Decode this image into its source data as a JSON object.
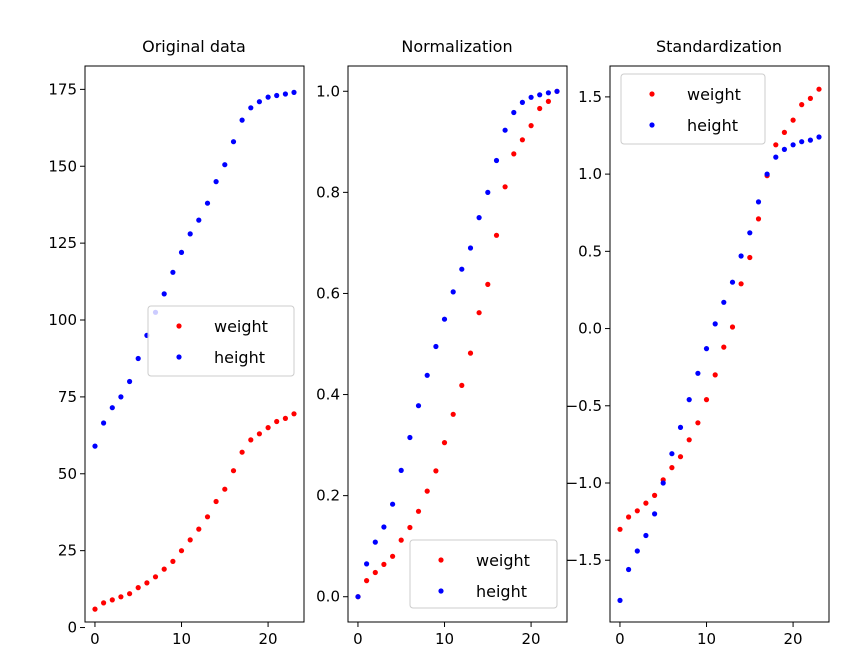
{
  "chart_data": [
    {
      "type": "scatter",
      "title": "Original data",
      "xlim": [
        -1.15,
        24.15
      ],
      "ylim": [
        1.8,
        182.6
      ],
      "xticks": [
        0,
        10,
        20
      ],
      "yticks": [
        0,
        25,
        50,
        75,
        100,
        125,
        150,
        175
      ],
      "ytick_labels": [
        "0",
        "25",
        "50",
        "75",
        "100",
        "125",
        "150",
        "175"
      ],
      "legend_location": "center-right",
      "series": [
        {
          "name": "weight",
          "color": "#ff0000",
          "x": [
            0,
            1,
            2,
            3,
            4,
            5,
            6,
            7,
            8,
            9,
            10,
            11,
            12,
            13,
            14,
            15,
            16,
            17,
            18,
            19,
            20,
            21,
            22,
            23
          ],
          "y": [
            6,
            8,
            9,
            10,
            11,
            13,
            14.5,
            16.5,
            19,
            21.5,
            25,
            28.5,
            32,
            36,
            41,
            45,
            51,
            57,
            61,
            63,
            65,
            67,
            68,
            69.5
          ]
        },
        {
          "name": "height",
          "color": "#0000ff",
          "x": [
            0,
            1,
            2,
            3,
            4,
            5,
            6,
            7,
            8,
            9,
            10,
            11,
            12,
            13,
            14,
            15,
            16,
            17,
            18,
            19,
            20,
            21,
            22,
            23
          ],
          "y": [
            59,
            66.5,
            71.5,
            75,
            80,
            87.5,
            95,
            102.5,
            108.5,
            115.5,
            122,
            128,
            132.5,
            138,
            145,
            150.5,
            158,
            165,
            169,
            171,
            172.5,
            173,
            173.5,
            174
          ]
        }
      ]
    },
    {
      "type": "scatter",
      "title": "Normalization",
      "xlim": [
        -1.15,
        24.15
      ],
      "ylim": [
        -0.05,
        1.05
      ],
      "xticks": [
        0,
        10,
        20
      ],
      "yticks": [
        0,
        0.2,
        0.4,
        0.6,
        0.8,
        1.0
      ],
      "ytick_labels": [
        "0.0",
        "0.2",
        "0.4",
        "0.6",
        "0.8",
        "1.0"
      ],
      "legend_location": "bottom-right",
      "series": [
        {
          "name": "weight",
          "color": "#ff0000",
          "x": [
            0,
            1,
            2,
            3,
            4,
            5,
            6,
            7,
            8,
            9,
            10,
            11,
            12,
            13,
            14,
            15,
            16,
            17,
            18,
            19,
            20,
            21,
            22,
            23
          ],
          "y": [
            0,
            0.032,
            0.048,
            0.064,
            0.08,
            0.112,
            0.137,
            0.169,
            0.209,
            0.249,
            0.305,
            0.361,
            0.418,
            0.482,
            0.562,
            0.618,
            0.715,
            0.811,
            0.876,
            0.904,
            0.932,
            0.966,
            0.98,
            1.0
          ]
        },
        {
          "name": "height",
          "color": "#0000ff",
          "x": [
            0,
            1,
            2,
            3,
            4,
            5,
            6,
            7,
            8,
            9,
            10,
            11,
            12,
            13,
            14,
            15,
            16,
            17,
            18,
            19,
            20,
            21,
            22,
            23
          ],
          "y": [
            0,
            0.065,
            0.108,
            0.138,
            0.183,
            0.25,
            0.315,
            0.378,
            0.438,
            0.495,
            0.549,
            0.603,
            0.648,
            0.69,
            0.75,
            0.8,
            0.863,
            0.923,
            0.958,
            0.978,
            0.988,
            0.993,
            0.997,
            1.0
          ]
        }
      ]
    },
    {
      "type": "scatter",
      "title": "Standardization",
      "xlim": [
        -1.15,
        24.15
      ],
      "ylim": [
        -1.9,
        1.7
      ],
      "xticks": [
        0,
        10,
        20
      ],
      "yticks": [
        -1.5,
        -1.0,
        -0.5,
        0.0,
        0.5,
        1.0,
        1.5
      ],
      "ytick_labels": [
        "−1.5",
        "−1.0",
        "−0.5",
        "0.0",
        "0.5",
        "1.0",
        "1.5"
      ],
      "legend_location": "top-left",
      "series": [
        {
          "name": "weight",
          "color": "#ff0000",
          "x": [
            0,
            1,
            2,
            3,
            4,
            5,
            6,
            7,
            8,
            9,
            10,
            11,
            12,
            13,
            14,
            15,
            16,
            17,
            18,
            19,
            20,
            21,
            22,
            23
          ],
          "y": [
            -1.3,
            -1.22,
            -1.18,
            -1.13,
            -1.08,
            -0.98,
            -0.9,
            -0.83,
            -0.72,
            -0.61,
            -0.46,
            -0.3,
            -0.12,
            0.01,
            0.29,
            0.46,
            0.71,
            0.99,
            1.19,
            1.27,
            1.35,
            1.45,
            1.49,
            1.55
          ]
        },
        {
          "name": "height",
          "color": "#0000ff",
          "x": [
            0,
            1,
            2,
            3,
            4,
            5,
            6,
            7,
            8,
            9,
            10,
            11,
            12,
            13,
            14,
            15,
            16,
            17,
            18,
            19,
            20,
            21,
            22,
            23
          ],
          "y": [
            -1.76,
            -1.56,
            -1.44,
            -1.34,
            -1.2,
            -1.0,
            -0.81,
            -0.64,
            -0.46,
            -0.29,
            -0.13,
            0.03,
            0.17,
            0.3,
            0.47,
            0.62,
            0.82,
            1.0,
            1.11,
            1.16,
            1.19,
            1.21,
            1.22,
            1.24
          ]
        }
      ]
    }
  ]
}
